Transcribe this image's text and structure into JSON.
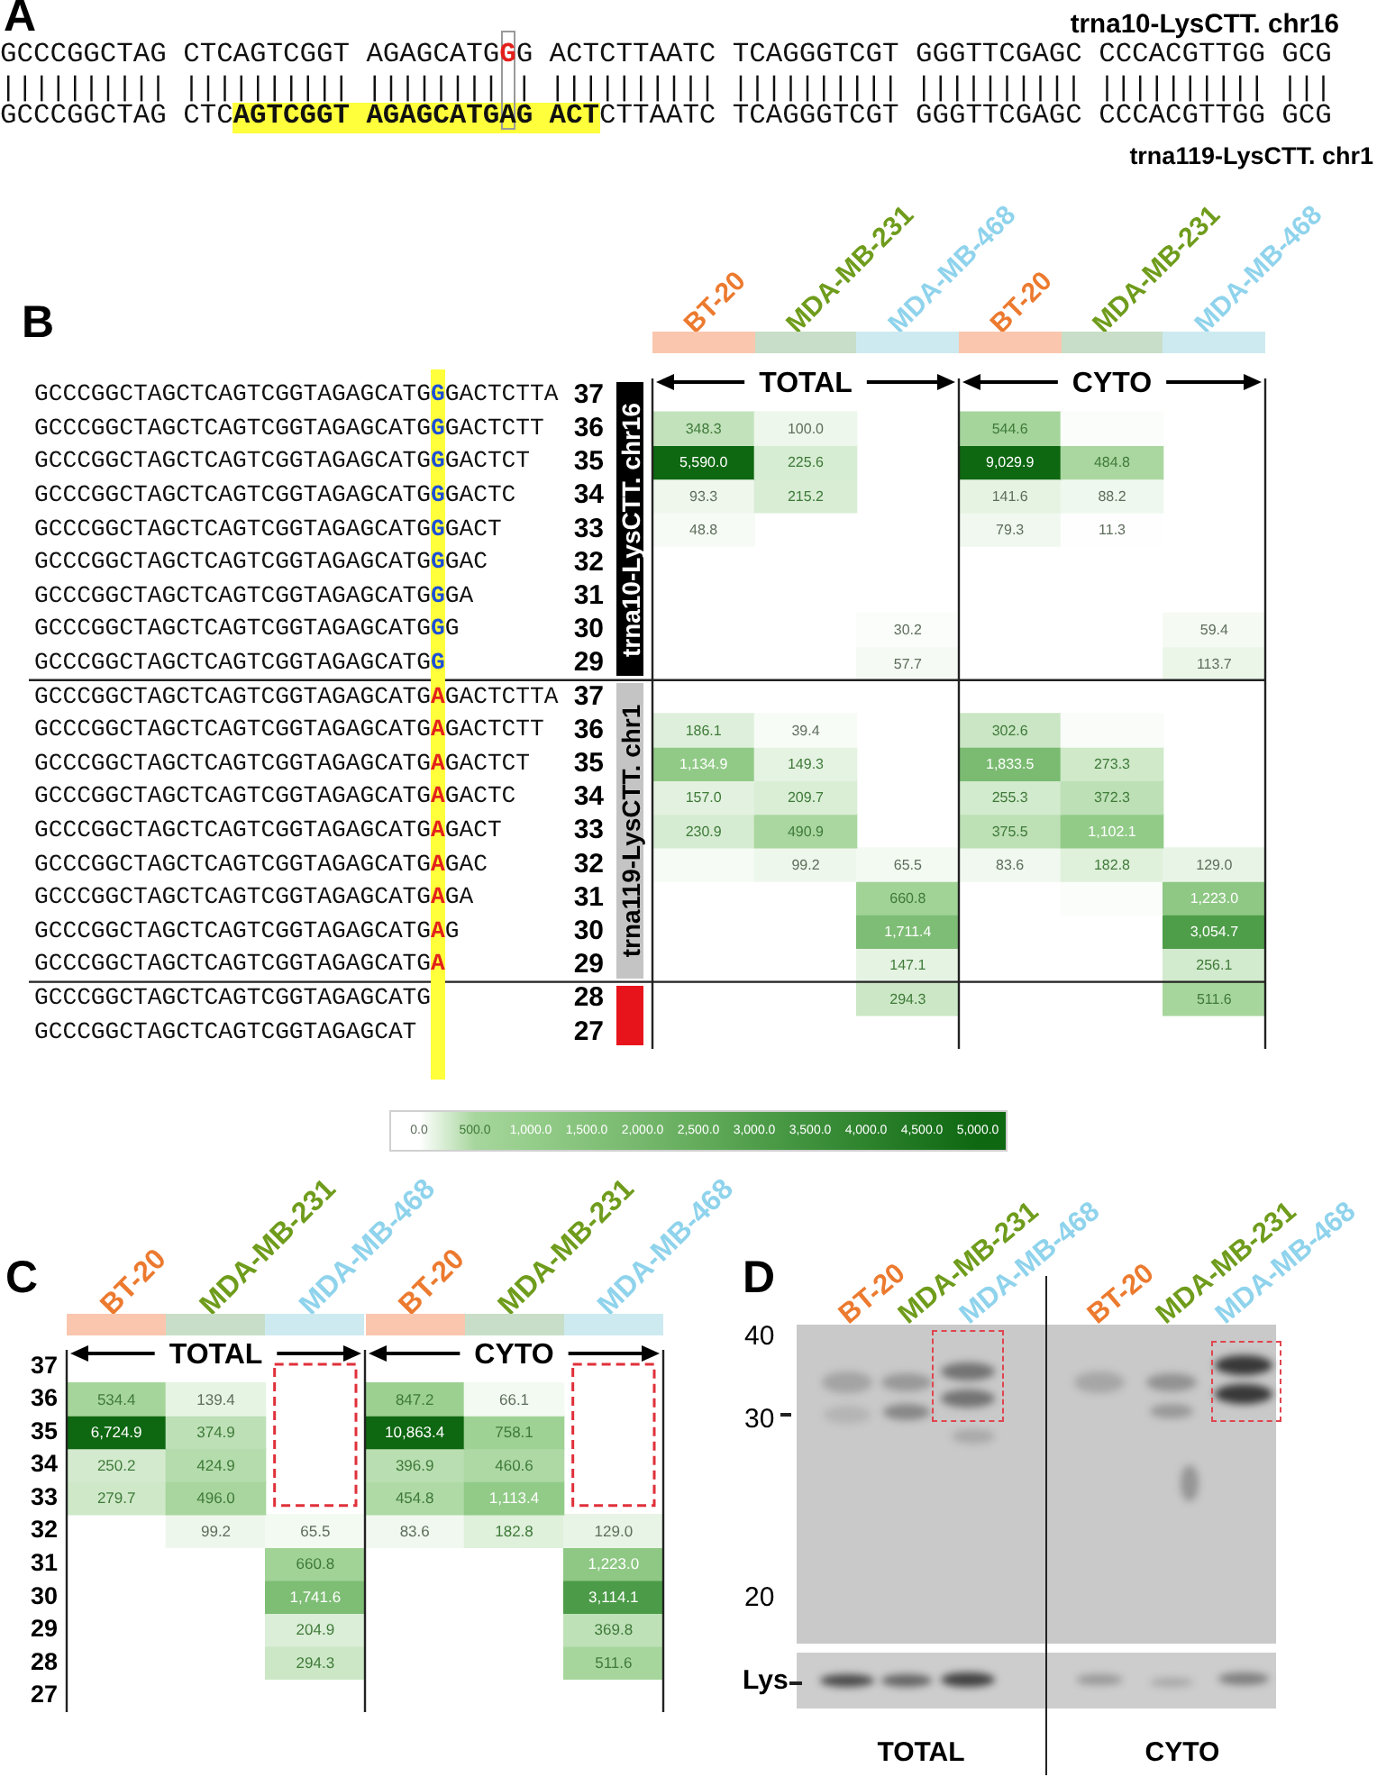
{
  "chart_data": [
    {
      "type": "other",
      "title": "A",
      "annotations": [
        "trna10-LysCTT. chr16",
        "GCCCGGCTAG CTCAGTCGGT AGAGCATG",
        "G",
        "G ACTCTTAATC TCAGGGTCGT GGGTTCGAGC CCCACGTTGG GCG",
        "|||||||||| |||||||||| |||||||| | |||||||||| |||||||||| |||||||||| |||||||||| |||",
        "GCCCGGCTAG CTC",
        "AGTCGGT AGAGCATGAG ACT",
        "CTTAATC TCAGGGTCGT GGGTTCGAGC CCCACGTTGG GCG",
        "trna119-LysCTT. chr1"
      ]
    },
    {
      "type": "heatmap",
      "title": "B",
      "categories": [
        "BT-20",
        "MDA-MB-231",
        "MDA-MB-468",
        "BT-20",
        "MDA-MB-231",
        "MDA-MB-468"
      ],
      "y_categories": [
        "37",
        "36",
        "35",
        "34",
        "33",
        "32",
        "31",
        "30",
        "29",
        "37",
        "36",
        "35",
        "34",
        "33",
        "32",
        "31",
        "30",
        "29",
        "28",
        "27"
      ],
      "y2_categories": [
        "GCCCGGCTAGCTCAGTCGGTAGAGCATGGGACTCTTA",
        "GCCCGGCTAGCTCAGTCGGTAGAGCATGGGACTCTT",
        "GCCCGGCTAGCTCAGTCGGTAGAGCATGGGACTCT",
        "GCCCGGCTAGCTCAGTCGGTAGAGCATGGGACTC",
        "GCCCGGCTAGCTCAGTCGGTAGAGCATGGGACT",
        "GCCCGGCTAGCTCAGTCGGTAGAGCATGGGAC",
        "GCCCGGCTAGCTCAGTCGGTAGAGCATGGGA",
        "GCCCGGCTAGCTCAGTCGGTAGAGCATGGG",
        "GCCCGGCTAGCTCAGTCGGTAGAGCATGG",
        "GCCCGGCTAGCTCAGTCGGTAGAGCATGAGACTCTTA",
        "GCCCGGCTAGCTCAGTCGGTAGAGCATGAGACTCTT",
        "GCCCGGCTAGCTCAGTCGGTAGAGCATGAGACTCT",
        "GCCCGGCTAGCTCAGTCGGTAGAGCATGAGACTC",
        "GCCCGGCTAGCTCAGTCGGTAGAGCATGAGACT",
        "GCCCGGCTAGCTCAGTCGGTAGAGCATGAGAC",
        "GCCCGGCTAGCTCAGTCGGTAGAGCATGAGA",
        "GCCCGGCTAGCTCAGTCGGTAGAGCATGAG",
        "GCCCGGCTAGCTCAGTCGGTAGAGCATGA",
        "GCCCGGCTAGCTCAGTCGGTAGAGCATG",
        "GCCCGGCTAGCTCAGTCGGTAGAGCAT"
      ],
      "cells": [
        [
          null,
          null,
          null,
          null,
          null,
          null
        ],
        [
          348.3,
          100.0,
          null,
          544.6,
          30,
          null
        ],
        [
          5590.0,
          225.6,
          null,
          9029.9,
          484.8,
          null
        ],
        [
          93.3,
          215.2,
          null,
          141.6,
          88.2,
          null
        ],
        [
          48.8,
          null,
          null,
          79.3,
          11.3,
          null
        ],
        [
          null,
          null,
          null,
          null,
          null,
          null
        ],
        [
          null,
          null,
          null,
          null,
          null,
          null
        ],
        [
          null,
          null,
          30.2,
          null,
          null,
          59.4
        ],
        [
          null,
          null,
          57.7,
          null,
          null,
          113.7
        ],
        [
          null,
          null,
          null,
          null,
          null,
          null
        ],
        [
          186.1,
          39.4,
          null,
          302.6,
          35,
          null
        ],
        [
          1134.9,
          149.3,
          null,
          1833.5,
          273.3,
          null
        ],
        [
          157.0,
          209.7,
          null,
          255.3,
          372.3,
          null
        ],
        [
          230.9,
          490.9,
          null,
          375.5,
          1102.1,
          null
        ],
        [
          50,
          99.2,
          65.5,
          83.6,
          182.8,
          129.0
        ],
        [
          null,
          null,
          660.8,
          null,
          30,
          1223.0
        ],
        [
          null,
          null,
          1711.4,
          null,
          null,
          3054.7
        ],
        [
          null,
          null,
          147.1,
          null,
          null,
          256.1
        ],
        [
          null,
          null,
          294.3,
          null,
          null,
          511.6
        ],
        [
          null,
          null,
          null,
          null,
          null,
          null
        ]
      ],
      "cell_labels": [
        [
          null,
          null,
          null,
          null,
          null,
          null
        ],
        [
          "348.3",
          "100.0",
          null,
          "544.6",
          null,
          null
        ],
        [
          "5,590.0",
          "225.6",
          null,
          "9,029.9",
          "484.8",
          null
        ],
        [
          "93.3",
          "215.2",
          null,
          "141.6",
          "88.2",
          null
        ],
        [
          "48.8",
          null,
          null,
          "79.3",
          "11.3",
          null
        ],
        [
          null,
          null,
          null,
          null,
          null,
          null
        ],
        [
          null,
          null,
          null,
          null,
          null,
          null
        ],
        [
          null,
          null,
          "30.2",
          null,
          null,
          "59.4"
        ],
        [
          null,
          null,
          "57.7",
          null,
          null,
          "113.7"
        ],
        [
          null,
          null,
          null,
          null,
          null,
          null
        ],
        [
          "186.1",
          "39.4",
          null,
          "302.6",
          null,
          null
        ],
        [
          "1,134.9",
          "149.3",
          null,
          "1,833.5",
          "273.3",
          null
        ],
        [
          "157.0",
          "209.7",
          null,
          "255.3",
          "372.3",
          null
        ],
        [
          "230.9",
          "490.9",
          null,
          "375.5",
          "1,102.1",
          null
        ],
        [
          null,
          "99.2",
          "65.5",
          "83.6",
          "182.8",
          "129.0"
        ],
        [
          null,
          null,
          "660.8",
          null,
          null,
          "1,223.0"
        ],
        [
          null,
          null,
          "1,711.4",
          null,
          null,
          "3,054.7"
        ],
        [
          null,
          null,
          "147.1",
          null,
          null,
          "256.1"
        ],
        [
          null,
          null,
          "294.3",
          null,
          null,
          "511.6"
        ],
        [
          null,
          null,
          null,
          null,
          null,
          null
        ]
      ],
      "clim": [
        0,
        5000
      ],
      "cticks": [
        {
          "value": 0,
          "label": "0.0"
        },
        {
          "value": 500,
          "label": "500.0"
        },
        {
          "value": 1000,
          "label": "1,000.0"
        },
        {
          "value": 1500,
          "label": "1,500.0"
        },
        {
          "value": 2000,
          "label": "2,000.0"
        },
        {
          "value": 2500,
          "label": "2,500.0"
        },
        {
          "value": 3000,
          "label": "3,000.0"
        },
        {
          "value": 3500,
          "label": "3,500.0"
        },
        {
          "value": 4000,
          "label": "4,000.0"
        },
        {
          "value": 4500,
          "label": "4,500.0"
        },
        {
          "value": 5000,
          "label": "5,000.0"
        }
      ],
      "annotations": [
        "TOTAL",
        "CYTO",
        "trna10-LysCTT. chr16",
        "trna119-LysCTT. chr1"
      ]
    },
    {
      "type": "heatmap",
      "title": "C",
      "categories": [
        "BT-20",
        "MDA-MB-231",
        "MDA-MB-468",
        "BT-20",
        "MDA-MB-231",
        "MDA-MB-468"
      ],
      "y_categories": [
        "37",
        "36",
        "35",
        "34",
        "33",
        "32",
        "31",
        "30",
        "29",
        "28",
        "27"
      ],
      "cells": [
        [
          null,
          null,
          null,
          null,
          null,
          null
        ],
        [
          534.4,
          139.4,
          null,
          847.2,
          66.1,
          null
        ],
        [
          6724.9,
          374.9,
          null,
          10863.4,
          758.1,
          null
        ],
        [
          250.2,
          424.9,
          null,
          396.9,
          460.6,
          null
        ],
        [
          279.7,
          496.0,
          null,
          454.8,
          1113.4,
          null
        ],
        [
          null,
          99.2,
          65.5,
          83.6,
          182.8,
          129.0
        ],
        [
          null,
          null,
          660.8,
          null,
          null,
          1223.0
        ],
        [
          null,
          null,
          1741.6,
          null,
          null,
          3114.1
        ],
        [
          null,
          null,
          204.9,
          null,
          null,
          369.8
        ],
        [
          null,
          null,
          294.3,
          null,
          null,
          511.6
        ],
        [
          null,
          null,
          null,
          null,
          null,
          null
        ]
      ],
      "cell_labels": [
        [
          null,
          null,
          null,
          null,
          null,
          null
        ],
        [
          "534.4",
          "139.4",
          null,
          "847.2",
          "66.1",
          null
        ],
        [
          "6,724.9",
          "374.9",
          null,
          "10,863.4",
          "758.1",
          null
        ],
        [
          "250.2",
          "424.9",
          null,
          "396.9",
          "460.6",
          null
        ],
        [
          "279.7",
          "496.0",
          null,
          "454.8",
          "1,113.4",
          null
        ],
        [
          null,
          "99.2",
          "65.5",
          "83.6",
          "182.8",
          "129.0"
        ],
        [
          null,
          null,
          "660.8",
          null,
          null,
          "1,223.0"
        ],
        [
          null,
          null,
          "1,741.6",
          null,
          null,
          "3,114.1"
        ],
        [
          null,
          null,
          "204.9",
          null,
          null,
          "369.8"
        ],
        [
          null,
          null,
          "294.3",
          null,
          null,
          "511.6"
        ],
        [
          null,
          null,
          null,
          null,
          null,
          null
        ]
      ],
      "annotations": [
        "TOTAL",
        "CYTO"
      ]
    },
    {
      "type": "other",
      "title": "D",
      "categories": [
        "BT-20",
        "MDA-MB-231",
        "MDA-MB-468",
        "BT-20",
        "MDA-MB-231",
        "MDA-MB-468"
      ],
      "annotations": [
        "40",
        "30",
        "20",
        "Lys",
        "TOTAL",
        "CYTO"
      ]
    }
  ]
}
